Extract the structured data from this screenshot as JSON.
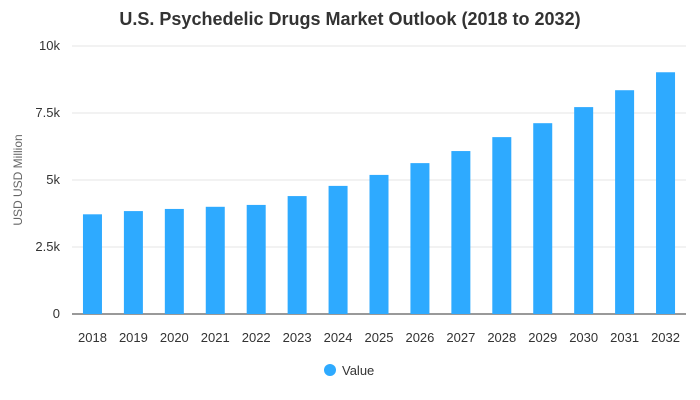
{
  "chart_data": {
    "type": "bar",
    "title": "U.S. Psychedelic Drugs Market Outlook (2018 to 2032)",
    "xlabel": "",
    "ylabel": "USD USD Million",
    "categories": [
      "2018",
      "2019",
      "2020",
      "2021",
      "2022",
      "2023",
      "2024",
      "2025",
      "2026",
      "2027",
      "2028",
      "2029",
      "2030",
      "2031",
      "2032"
    ],
    "series": [
      {
        "name": "Value",
        "color": "#2eaaff",
        "values": [
          3720,
          3840,
          3920,
          4000,
          4070,
          4400,
          4780,
          5190,
          5630,
          6080,
          6600,
          7120,
          7720,
          8350,
          9020
        ]
      }
    ],
    "ylim": [
      0,
      10000
    ],
    "yticks": [
      {
        "value": 0,
        "label": "0"
      },
      {
        "value": 2500,
        "label": "2.5k"
      },
      {
        "value": 5000,
        "label": "5k"
      },
      {
        "value": 7500,
        "label": "7.5k"
      },
      {
        "value": 10000,
        "label": "10k"
      }
    ],
    "grid": true,
    "legend": "bottom-center"
  }
}
